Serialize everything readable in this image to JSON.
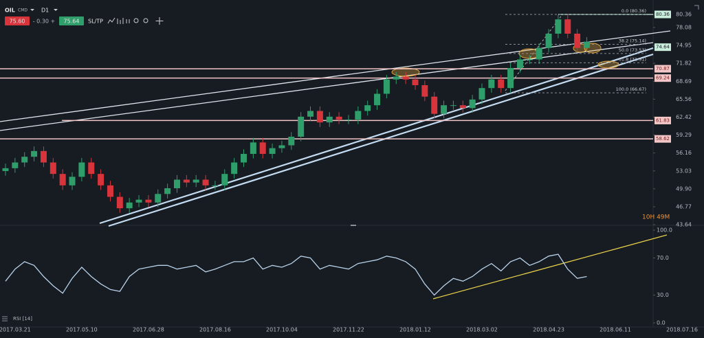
{
  "header": {
    "symbol": "OIL",
    "market": "CMD",
    "timeframe": "D1",
    "sell": "75.60",
    "change": "- 0.30 +",
    "buy": "75.64",
    "sltp": "SL/TP"
  },
  "chart_data": [
    {
      "type": "candlestick",
      "categories": [
        null,
        "2017.03.21",
        null,
        null,
        null,
        null,
        null,
        null,
        "2017.05.10",
        null,
        null,
        null,
        null,
        null,
        null,
        "2017.06.28",
        null,
        null,
        null,
        null,
        null,
        null,
        "2017.08.16",
        null,
        null,
        null,
        null,
        null,
        null,
        "2017.10.04",
        null,
        null,
        null,
        null,
        null,
        null,
        "2017.11.22",
        null,
        null,
        null,
        null,
        null,
        null,
        "2018.01.12",
        null,
        null,
        null,
        null,
        null,
        null,
        "2018.03.02",
        null,
        null,
        null,
        null,
        null,
        null,
        "2018.04.23",
        null,
        null,
        null,
        null,
        null,
        null,
        "2018.06.11",
        null,
        null,
        null,
        null,
        null,
        null,
        "2018.07.16"
      ],
      "open": [
        53,
        53.5,
        54.5,
        55.5,
        56.5,
        54.5,
        52.5,
        50.5,
        52,
        54.5,
        52.5,
        50.5,
        48.5,
        46.5,
        47.5,
        48,
        47.5,
        49,
        50,
        51.5,
        51,
        51.5,
        50.5,
        50.5,
        52.5,
        54.5,
        56,
        58,
        56,
        57,
        57.5,
        59,
        62.5,
        63.5,
        61.5,
        62.5,
        62,
        62,
        63.5,
        64.5,
        66.5,
        69,
        69.5,
        69,
        68,
        66,
        63,
        64.5,
        64.5,
        64,
        65.5,
        67.5,
        69,
        67.5,
        71,
        72.5,
        72.5,
        74.5,
        77,
        79.5,
        77,
        74.5,
        null,
        null,
        null,
        null,
        null,
        null,
        null,
        null,
        null,
        null
      ],
      "high": [
        54.3,
        55.3,
        56.3,
        57.3,
        57.3,
        55.3,
        53.3,
        52.8,
        55.3,
        55.3,
        53.3,
        51.3,
        49.3,
        48.3,
        48.8,
        48.8,
        49.8,
        50.8,
        52.3,
        52.3,
        52.3,
        52.3,
        51.3,
        53.3,
        55.3,
        56.8,
        58.8,
        58.8,
        57.8,
        58.3,
        59.8,
        63.3,
        64.3,
        64.3,
        63.3,
        63.3,
        62.8,
        64.3,
        65.3,
        67.3,
        69.8,
        70.3,
        70.3,
        69.8,
        68.8,
        66.8,
        65.3,
        65.3,
        65.3,
        66.3,
        68.3,
        69.8,
        69.8,
        71.8,
        73.3,
        73.3,
        75.3,
        77.8,
        80.3,
        80.3,
        77.8,
        76.4,
        null,
        null,
        null,
        null,
        null,
        null,
        null,
        null,
        null,
        null
      ],
      "low": [
        52.2,
        52.7,
        53.7,
        54.7,
        53.7,
        51.7,
        49.7,
        49.7,
        51.2,
        51.7,
        49.7,
        47.7,
        45.7,
        45.7,
        46.7,
        46.7,
        46.7,
        48.2,
        49.2,
        50.2,
        50.2,
        49.7,
        49.7,
        49.7,
        51.7,
        53.7,
        55.2,
        55.2,
        55.2,
        56.2,
        56.7,
        58.2,
        61.7,
        60.7,
        60.7,
        61.2,
        61.2,
        61.2,
        62.7,
        63.7,
        65.7,
        68.2,
        68.2,
        67.2,
        65.2,
        62.2,
        62.2,
        63.7,
        63.2,
        63.2,
        64.7,
        66.7,
        66.7,
        66.7,
        70.2,
        71.7,
        71.7,
        73.7,
        76.2,
        76.2,
        73.7,
        73.7,
        null,
        null,
        null,
        null,
        null,
        null,
        null,
        null,
        null,
        null
      ],
      "close": [
        53.5,
        54.5,
        55.5,
        56.5,
        54.5,
        52.5,
        50.5,
        52,
        54.5,
        52.5,
        50.5,
        48.5,
        46.5,
        47.5,
        48,
        47.5,
        49,
        50,
        51.5,
        51,
        51.5,
        50.5,
        50.5,
        52.5,
        54.5,
        56,
        58,
        56,
        57,
        57.5,
        59,
        62.5,
        63.5,
        61.5,
        62.5,
        62,
        62,
        63.5,
        64.5,
        66.5,
        69,
        69.5,
        69,
        68,
        66,
        63,
        64.5,
        64.5,
        64,
        65.5,
        67.5,
        69,
        67.5,
        71,
        72.5,
        72.5,
        74.5,
        77,
        79.5,
        77,
        74.5,
        75.6,
        null,
        null,
        null,
        null,
        null,
        null,
        null,
        null,
        null,
        null
      ],
      "up_color": "#2f9e6b",
      "down_color": "#d7343c",
      "ylim": [
        43.64,
        80.36
      ],
      "yticks": [
        80.36,
        78.08,
        74.95,
        71.82,
        68.69,
        65.56,
        62.42,
        59.29,
        56.16,
        53.03,
        {
          "value": 49.9,
          "label": "49.90"
        },
        46.77,
        43.64
      ],
      "price_markers": [
        {
          "value": 80.36,
          "color": "#c9eedb"
        },
        {
          "value": 74.64,
          "color": "#c9eedb"
        }
      ],
      "levels": [
        {
          "value": 70.87,
          "color": "#f3c7c7"
        },
        {
          "value": 69.24,
          "color": "#f3c7c7"
        },
        {
          "value": 61.83,
          "color": "#f3c7c7"
        },
        {
          "value": 58.62,
          "color": "#f3c7c7"
        }
      ],
      "fib_levels": [
        {
          "label": "0.0 (80.36)",
          "value": 80.36
        },
        {
          "label": "38.2 (75.14)",
          "value": 75.14
        },
        {
          "label": "50.0 (73.53)",
          "value": 73.53
        },
        {
          "label": "61.8 (71.91)",
          "value": 71.91
        },
        {
          "label": "100.0 (66.67)",
          "value": 66.67
        }
      ],
      "countdown": "10H 49M"
    },
    {
      "type": "line",
      "title": "RSI [14]",
      "color": "#b9d3ea",
      "values": [
        45,
        58,
        66,
        62,
        50,
        40,
        32,
        48,
        60,
        50,
        42,
        36,
        34,
        50,
        58,
        60,
        62,
        62,
        58,
        60,
        62,
        55,
        58,
        62,
        66,
        66,
        70,
        58,
        62,
        60,
        64,
        72,
        70,
        58,
        62,
        60,
        58,
        64,
        66,
        68,
        72,
        70,
        66,
        58,
        42,
        30,
        40,
        48,
        45,
        50,
        58,
        64,
        56,
        66,
        70,
        62,
        66,
        72,
        74,
        58,
        48,
        50,
        null,
        null,
        null,
        null,
        null,
        null,
        null,
        null,
        null,
        null
      ],
      "ylim": [
        0,
        100
      ],
      "yticks": [
        {
          "value": 100,
          "label": "100.0"
        },
        {
          "value": 70,
          "label": "70.0"
        },
        {
          "value": 30,
          "label": "30.0"
        },
        {
          "value": 0,
          "label": "0.0"
        }
      ]
    }
  ]
}
